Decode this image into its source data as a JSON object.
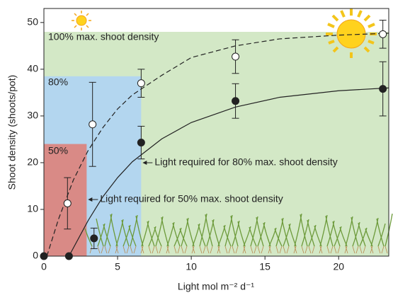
{
  "chart_data": {
    "type": "scatter",
    "xlabel": "Light mol m⁻² d⁻¹",
    "ylabel": "Shoot density (shoots/pot)",
    "xlim": [
      0,
      23.4
    ],
    "ylim": [
      0,
      53
    ],
    "xticks": [
      0,
      5,
      10,
      15,
      20
    ],
    "yticks": [
      0,
      10,
      20,
      30,
      40,
      50
    ],
    "regions": [
      {
        "label": "100% max. shoot density",
        "color": "#d3e8c6",
        "text_color": "#4e8a3e",
        "xmax": 23.4,
        "ymax": 48
      },
      {
        "label": "80%",
        "color": "#b3d6ef",
        "text_color": "#2c7fbf",
        "xmax": 6.6,
        "ymax": 38.5
      },
      {
        "label": "50%",
        "color": "#d98a86",
        "text_color": "#b03028",
        "xmax": 2.9,
        "ymax": 24
      }
    ],
    "series": [
      {
        "x": [
          1.6,
          3.3,
          6.6,
          13,
          23
        ],
        "values": [
          11.3,
          28.2,
          37,
          42.7,
          47.5
        ],
        "errors": [
          5.5,
          9,
          3,
          3.6,
          3
        ],
        "marker": "open",
        "color": "#222"
      },
      {
        "x": [
          0,
          1.7,
          3.4,
          6.6,
          13,
          23
        ],
        "values": [
          0,
          0,
          3.8,
          24.3,
          33.2,
          35.8
        ],
        "errors": [
          0,
          0,
          2.2,
          3.5,
          3.7,
          5.8
        ],
        "marker": "filled",
        "color": "#222"
      }
    ],
    "curves": [
      {
        "style": "dashed",
        "x": [
          0.2,
          1,
          2,
          3,
          4,
          5,
          6,
          8,
          10,
          13,
          16,
          20,
          23.4
        ],
        "values": [
          0,
          8,
          16.3,
          22.6,
          27.5,
          31.5,
          34.5,
          38.7,
          42.5,
          45,
          46.5,
          47.3,
          47.7
        ]
      },
      {
        "style": "solid",
        "x": [
          1.7,
          3,
          4,
          5,
          6,
          8,
          10,
          13,
          16,
          20,
          23.4
        ],
        "values": [
          0,
          7.6,
          12.7,
          16.8,
          20.2,
          25.1,
          28.6,
          31.9,
          34,
          35.4,
          36
        ]
      }
    ],
    "annotations": [
      {
        "text": "Light required for 80% max. shoot density",
        "x": 6.6,
        "y": 20
      },
      {
        "text": "Light required for 50% max. shoot density",
        "x": 2.9,
        "y": 12
      }
    ]
  }
}
